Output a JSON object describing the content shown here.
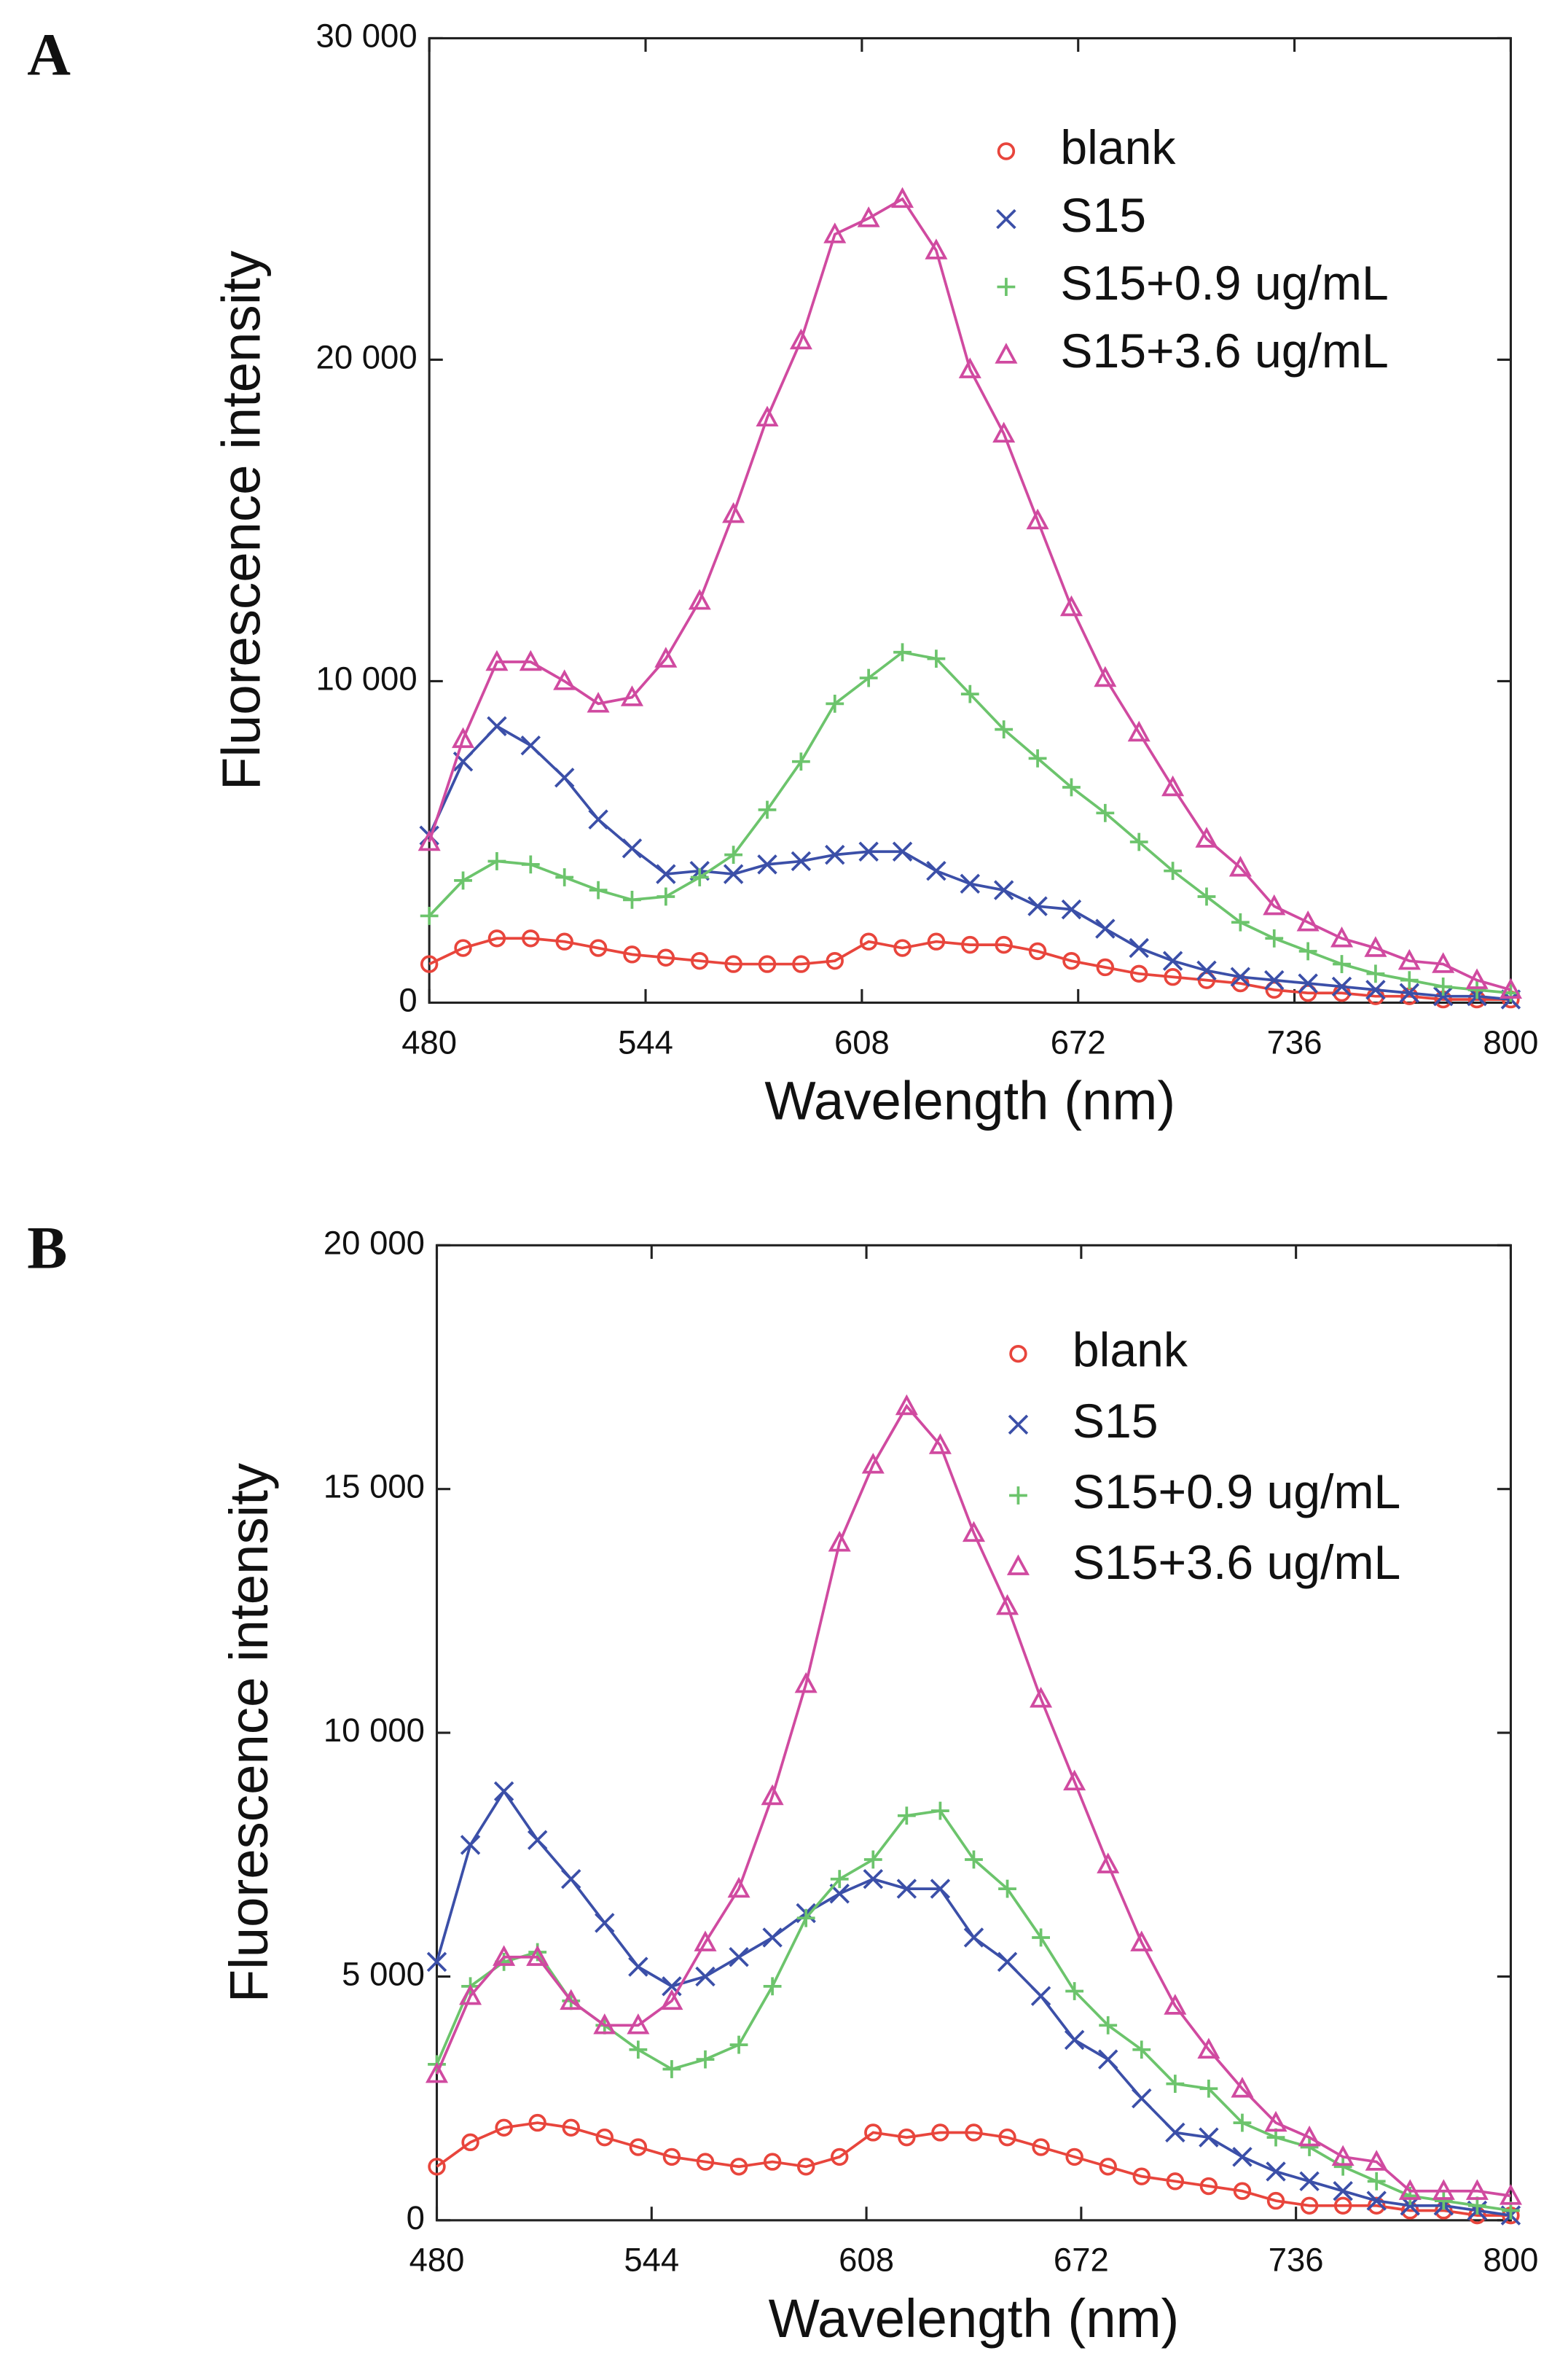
{
  "chart_data": [
    {
      "type": "line",
      "panel_label": "A",
      "xlabel": "Wavelength (nm)",
      "ylabel": "Fluorescence intensity",
      "x": [
        480,
        490,
        500,
        510,
        520,
        530,
        540,
        550,
        560,
        570,
        580,
        590,
        600,
        610,
        620,
        630,
        640,
        650,
        660,
        670,
        680,
        690,
        700,
        710,
        720,
        730,
        740,
        750,
        760,
        770,
        780,
        790,
        800
      ],
      "xlim": [
        480,
        800
      ],
      "xticks": [
        480,
        544,
        608,
        672,
        736,
        800
      ],
      "ylim": [
        0,
        30000
      ],
      "yticks": [
        {
          "value": 0,
          "label": "0"
        },
        {
          "value": 10000,
          "label": "10 000"
        },
        {
          "value": 20000,
          "label": "20 000"
        },
        {
          "value": 30000,
          "label": "30 000"
        }
      ],
      "series": [
        {
          "name": "blank",
          "color": "#e8453c",
          "marker": "circle",
          "values": [
            1200,
            1700,
            2000,
            2000,
            1900,
            1700,
            1500,
            1400,
            1300,
            1200,
            1200,
            1200,
            1300,
            1900,
            1700,
            1900,
            1800,
            1800,
            1600,
            1300,
            1100,
            900,
            800,
            700,
            600,
            400,
            300,
            300,
            200,
            200,
            100,
            100,
            100
          ]
        },
        {
          "name": "S15",
          "color": "#3b4fa8",
          "marker": "x",
          "values": [
            5200,
            7500,
            8600,
            8000,
            7000,
            5700,
            4800,
            4000,
            4100,
            4000,
            4300,
            4400,
            4600,
            4700,
            4700,
            4100,
            3700,
            3500,
            3000,
            2900,
            2300,
            1700,
            1300,
            1000,
            800,
            700,
            600,
            500,
            400,
            300,
            200,
            200,
            100
          ]
        },
        {
          "name": "S15+0.9 ug/mL",
          "color": "#6cc46c",
          "marker": "plus",
          "values": [
            2700,
            3800,
            4400,
            4300,
            3900,
            3500,
            3200,
            3300,
            3900,
            4600,
            6000,
            7500,
            9300,
            10100,
            10900,
            10700,
            9600,
            8500,
            7600,
            6700,
            5900,
            5000,
            4100,
            3300,
            2500,
            2000,
            1600,
            1200,
            900,
            700,
            500,
            400,
            300
          ]
        },
        {
          "name": "S15+3.6 ug/mL",
          "color": "#d04aa0",
          "marker": "triangle",
          "values": [
            5000,
            8200,
            10600,
            10600,
            10000,
            9300,
            9500,
            10700,
            12500,
            15200,
            18200,
            20600,
            23900,
            24400,
            25000,
            23400,
            19700,
            17700,
            15000,
            12300,
            10100,
            8400,
            6700,
            5100,
            4200,
            3000,
            2500,
            2000,
            1700,
            1300,
            1200,
            700,
            400
          ]
        }
      ]
    },
    {
      "type": "line",
      "panel_label": "B",
      "xlabel": "Wavelength (nm)",
      "ylabel": "Fluorescence intensity",
      "x": [
        480,
        490,
        500,
        510,
        520,
        530,
        540,
        550,
        560,
        570,
        580,
        590,
        600,
        610,
        620,
        630,
        640,
        650,
        660,
        670,
        680,
        690,
        700,
        710,
        720,
        730,
        740,
        750,
        760,
        770,
        780,
        790,
        800
      ],
      "xlim": [
        480,
        800
      ],
      "xticks": [
        480,
        544,
        608,
        672,
        736,
        800
      ],
      "ylim": [
        0,
        20000
      ],
      "yticks": [
        {
          "value": 0,
          "label": "0"
        },
        {
          "value": 5000,
          "label": "5 000"
        },
        {
          "value": 10000,
          "label": "10 000"
        },
        {
          "value": 15000,
          "label": "15 000"
        },
        {
          "value": 20000,
          "label": "20 000"
        }
      ],
      "series": [
        {
          "name": "blank",
          "color": "#e8453c",
          "marker": "circle",
          "values": [
            1100,
            1600,
            1900,
            2000,
            1900,
            1700,
            1500,
            1300,
            1200,
            1100,
            1200,
            1100,
            1300,
            1800,
            1700,
            1800,
            1800,
            1700,
            1500,
            1300,
            1100,
            900,
            800,
            700,
            600,
            400,
            300,
            300,
            300,
            200,
            200,
            100,
            100
          ]
        },
        {
          "name": "S15",
          "color": "#3b4fa8",
          "marker": "x",
          "values": [
            5300,
            7700,
            8800,
            7800,
            7000,
            6100,
            5200,
            4800,
            5000,
            5400,
            5800,
            6300,
            6700,
            7000,
            6800,
            6800,
            5800,
            5300,
            4600,
            3700,
            3300,
            2500,
            1800,
            1700,
            1300,
            1000,
            800,
            600,
            400,
            300,
            300,
            200,
            100
          ]
        },
        {
          "name": "S15+0.9 ug/mL",
          "color": "#6cc46c",
          "marker": "plus",
          "values": [
            3200,
            4800,
            5300,
            5500,
            4500,
            4000,
            3500,
            3100,
            3300,
            3600,
            4800,
            6200,
            7000,
            7400,
            8300,
            8400,
            7400,
            6800,
            5800,
            4700,
            4000,
            3500,
            2800,
            2700,
            2000,
            1700,
            1500,
            1100,
            800,
            500,
            400,
            300,
            200
          ]
        },
        {
          "name": "S15+3.6 ug/mL",
          "color": "#d04aa0",
          "marker": "triangle",
          "values": [
            3000,
            4600,
            5400,
            5400,
            4500,
            4000,
            4000,
            4500,
            5700,
            6800,
            8700,
            11000,
            13900,
            15500,
            16700,
            15900,
            14100,
            12600,
            10700,
            9000,
            7300,
            5700,
            4400,
            3500,
            2700,
            2000,
            1700,
            1300,
            1200,
            600,
            600,
            600,
            500
          ]
        }
      ]
    }
  ]
}
